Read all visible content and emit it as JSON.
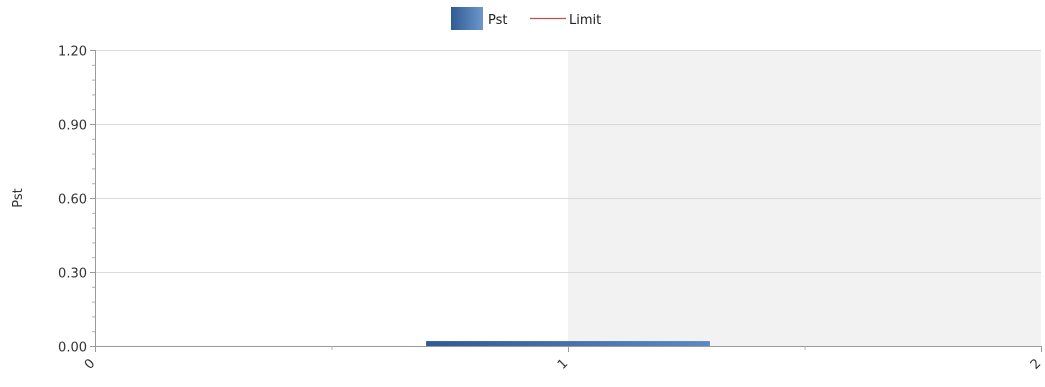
{
  "chart_data": {
    "type": "bar",
    "legend": {
      "placement": "top-center",
      "entries": [
        {
          "name": "Pst",
          "kind": "bar",
          "color": "#3d6aa5"
        },
        {
          "name": "Limit",
          "kind": "line",
          "color": "#c0504d"
        }
      ]
    },
    "ylabel": "Pst",
    "xlabel": "",
    "ylim": [
      0,
      1.2
    ],
    "yticks": [
      "0.00",
      "0.30",
      "0.60",
      "0.90",
      "1.20"
    ],
    "xlim": [
      0,
      2
    ],
    "xticks": [
      "0",
      "1",
      "2"
    ],
    "x": [
      1
    ],
    "series": [
      {
        "name": "Pst",
        "values": [
          0.02
        ]
      }
    ],
    "shaded_region": {
      "from_x": 1,
      "to_x": 2,
      "color": "#f2f2f2"
    },
    "grid": true,
    "bar_color": "#3d6aa5",
    "bar_color_light": "#5b8ac2"
  }
}
